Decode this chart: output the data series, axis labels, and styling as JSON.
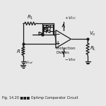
{
  "title": "Fig. 14.20 ■■■ OpAmp Comparator Circuit",
  "bg_color": "#e8e8e8",
  "line_color": "#1a1a1a",
  "r1_label": "R_1",
  "r_label": "R",
  "rl_label": "R_L",
  "vref_label": "V_{ref}",
  "protection_label": "Protection\nDiodes",
  "vcc_label": "+V_{CC}",
  "vee_label": "-V_{EE}",
  "vo_label": "V_o"
}
